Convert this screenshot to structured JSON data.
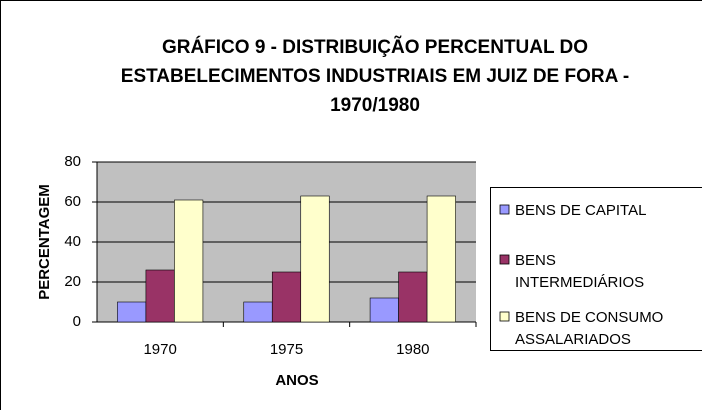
{
  "chart_data": {
    "type": "bar",
    "title": "GRÁFICO 9 - DISTRIBUIÇÃO PERCENTUAL DO ESTABELECIMENTOS INDUSTRIAIS EM JUIZ DE FORA - 1970/1980",
    "x_label": "ANOS",
    "y_label": "PERCENTAGEM",
    "categories": [
      "1970",
      "1975",
      "1980"
    ],
    "series": [
      {
        "name": "BENS DE CAPITAL",
        "color": "#9999ff",
        "values": [
          10,
          10,
          12
        ]
      },
      {
        "name": "BENS INTERMEDIÁRIOS",
        "color": "#993366",
        "values": [
          26,
          25,
          25
        ]
      },
      {
        "name": "BENS DE CONSUMO ASSALARIADOS",
        "color": "#ffffcc",
        "values": [
          61,
          63,
          63
        ]
      }
    ],
    "ylim": [
      0,
      80
    ],
    "yticks": [
      0,
      20,
      40,
      60,
      80
    ],
    "grid": true,
    "legend": "right"
  }
}
